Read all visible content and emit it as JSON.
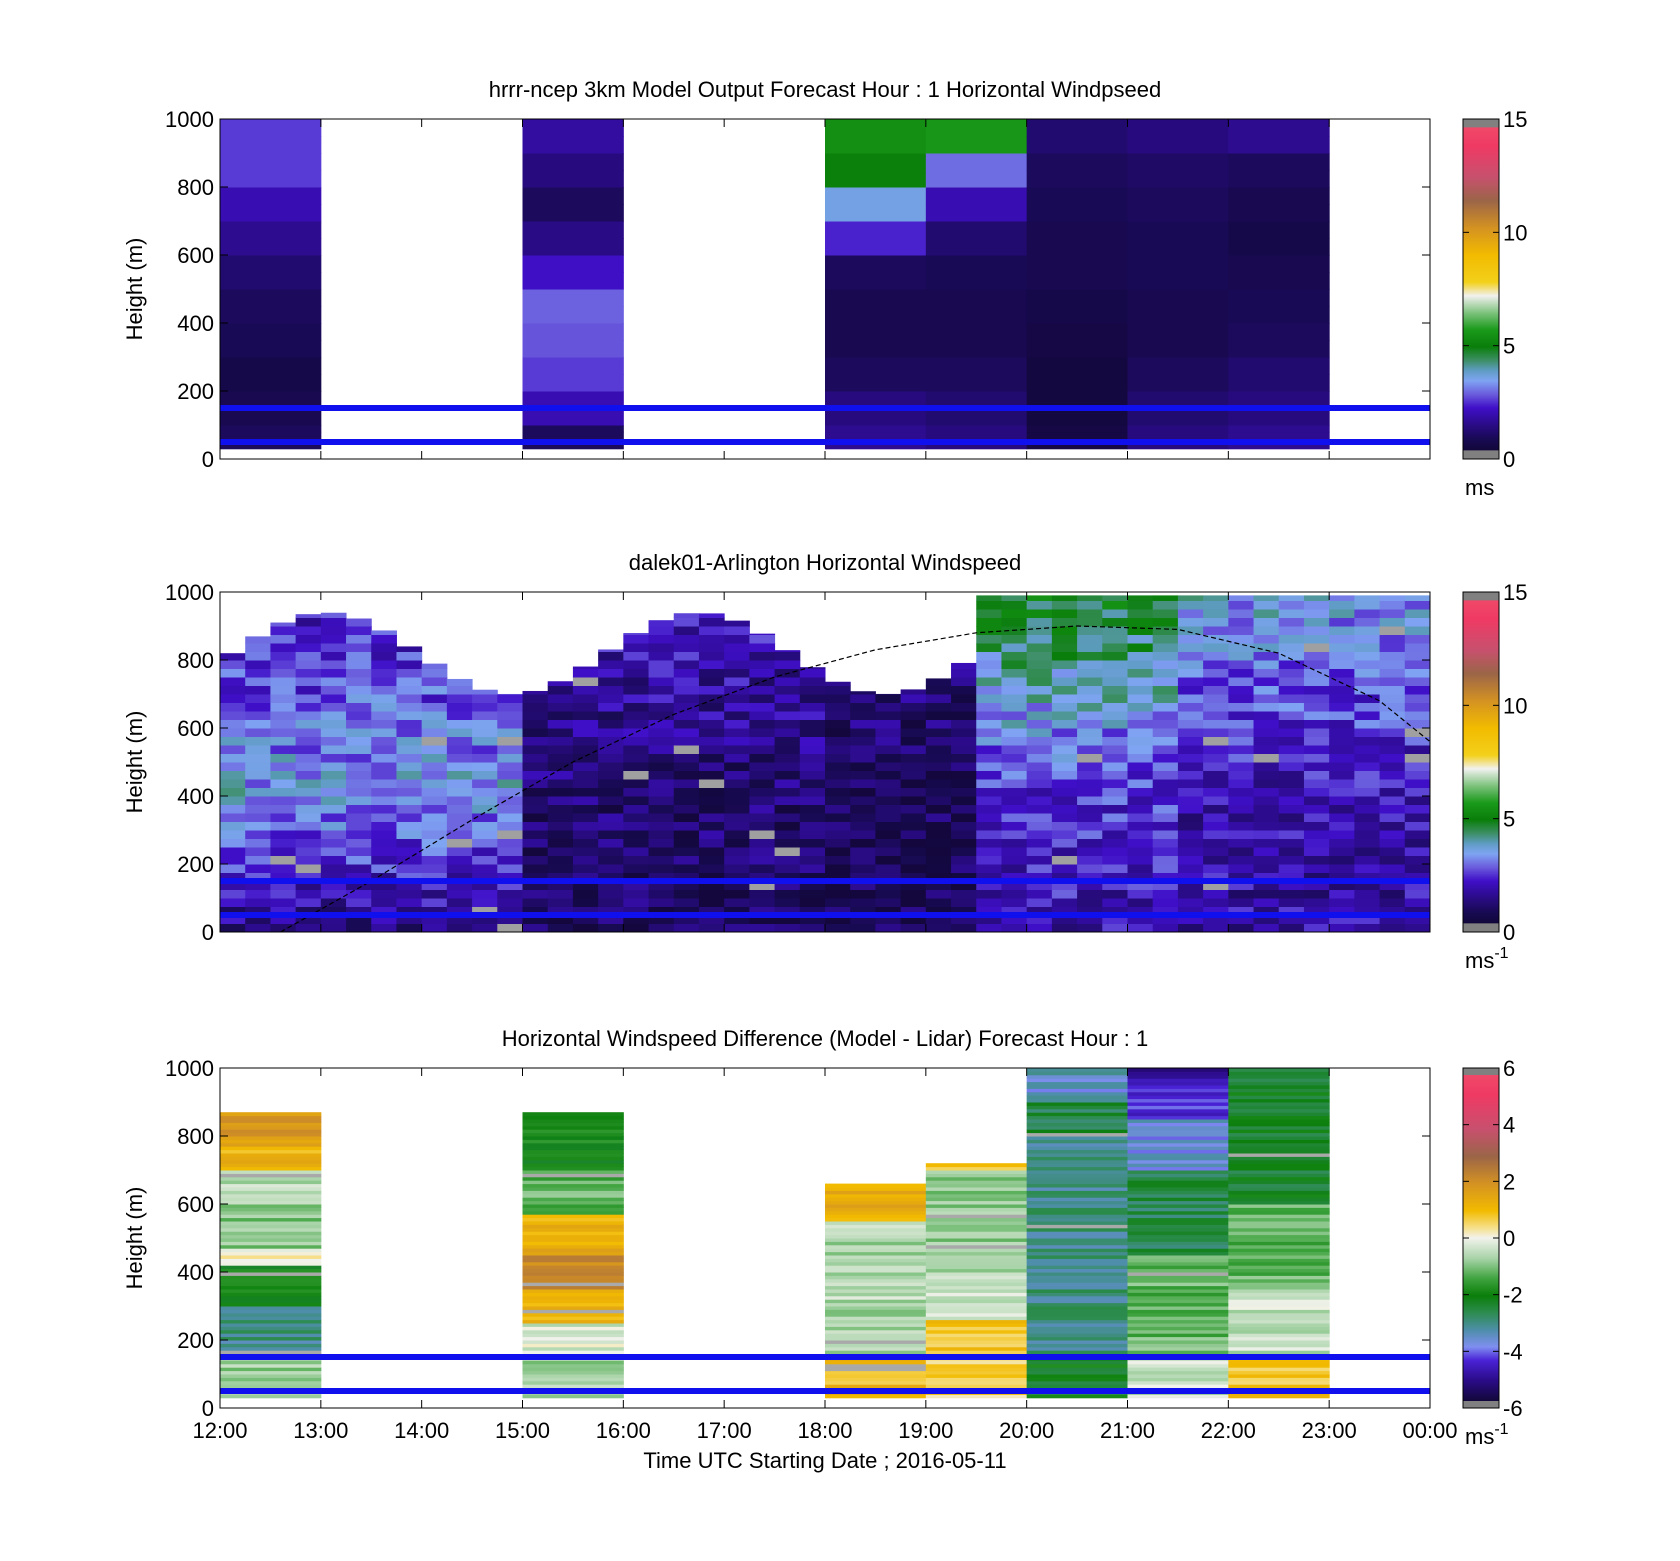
{
  "figure": {
    "xlabel": "Time UTC  Starting Date ; 2016-05-11"
  },
  "chart_data": [
    {
      "type": "heatmap",
      "id": "model",
      "title": "hrrr-ncep 3km Model Output   Forecast Hour : 1 Horizontal Windpseed",
      "ylabel": "Height (m)",
      "xlim": [
        12,
        24
      ],
      "ylim": [
        0,
        1000
      ],
      "x_ticks": [
        "12:00",
        "13:00",
        "14:00",
        "15:00",
        "16:00",
        "17:00",
        "18:00",
        "19:00",
        "20:00",
        "21:00",
        "22:00",
        "23:00",
        "00:00"
      ],
      "x_tick_labels_shown": false,
      "y_ticks": [
        "0",
        "200",
        "400",
        "600",
        "800",
        "1000"
      ],
      "colorbar": {
        "min": 0,
        "max": 15,
        "ticks": [
          "0",
          "5",
          "10",
          "15"
        ],
        "unit": "ms",
        "unit_superscript": ""
      },
      "reference_lines_m": [
        50,
        150
      ],
      "reference_line_color": "#1010ee",
      "columns": [
        {
          "hour": 12,
          "layers": [
            [
              30,
              100,
              1.0
            ],
            [
              100,
              200,
              0.8
            ],
            [
              200,
              300,
              0.7
            ],
            [
              300,
              400,
              0.9
            ],
            [
              400,
              500,
              1.0
            ],
            [
              500,
              600,
              1.2
            ],
            [
              600,
              700,
              1.6
            ],
            [
              700,
              800,
              2.0
            ],
            [
              800,
              1000,
              2.6
            ]
          ]
        },
        {
          "hour": 15,
          "layers": [
            [
              30,
              100,
              1.0
            ],
            [
              100,
              200,
              2.0
            ],
            [
              200,
              300,
              2.6
            ],
            [
              300,
              400,
              2.8
            ],
            [
              400,
              500,
              2.9
            ],
            [
              500,
              600,
              2.2
            ],
            [
              600,
              700,
              1.5
            ],
            [
              700,
              800,
              1.0
            ],
            [
              800,
              900,
              1.4
            ],
            [
              900,
              1000,
              1.8
            ]
          ]
        },
        {
          "hour": 18,
          "layers": [
            [
              30,
              100,
              1.6
            ],
            [
              100,
              200,
              1.4
            ],
            [
              200,
              300,
              1.0
            ],
            [
              300,
              400,
              0.8
            ],
            [
              400,
              500,
              0.8
            ],
            [
              500,
              600,
              1.0
            ],
            [
              600,
              700,
              2.4
            ],
            [
              700,
              800,
              3.6
            ],
            [
              800,
              900,
              5.0
            ],
            [
              900,
              1000,
              5.4
            ]
          ]
        },
        {
          "hour": 19,
          "layers": [
            [
              30,
              100,
              1.4
            ],
            [
              100,
              200,
              1.2
            ],
            [
              200,
              300,
              1.0
            ],
            [
              300,
              400,
              0.8
            ],
            [
              400,
              500,
              0.8
            ],
            [
              500,
              600,
              0.9
            ],
            [
              600,
              700,
              1.2
            ],
            [
              700,
              800,
              2.0
            ],
            [
              800,
              900,
              3.0
            ],
            [
              900,
              1000,
              5.6
            ]
          ]
        },
        {
          "hour": 20,
          "layers": [
            [
              30,
              100,
              0.6
            ],
            [
              100,
              200,
              0.5
            ],
            [
              200,
              300,
              0.5
            ],
            [
              300,
              400,
              0.6
            ],
            [
              400,
              500,
              0.7
            ],
            [
              500,
              600,
              0.8
            ],
            [
              600,
              700,
              0.8
            ],
            [
              700,
              800,
              0.9
            ],
            [
              800,
              900,
              1.0
            ],
            [
              900,
              1000,
              1.2
            ]
          ]
        },
        {
          "hour": 21,
          "layers": [
            [
              30,
              100,
              1.4
            ],
            [
              100,
              200,
              1.2
            ],
            [
              200,
              300,
              1.0
            ],
            [
              300,
              400,
              0.8
            ],
            [
              400,
              500,
              0.8
            ],
            [
              500,
              600,
              0.9
            ],
            [
              600,
              700,
              0.9
            ],
            [
              700,
              800,
              1.0
            ],
            [
              800,
              900,
              1.1
            ],
            [
              900,
              1000,
              1.4
            ]
          ]
        },
        {
          "hour": 22,
          "layers": [
            [
              30,
              100,
              1.6
            ],
            [
              100,
              200,
              1.4
            ],
            [
              200,
              300,
              1.2
            ],
            [
              300,
              400,
              1.0
            ],
            [
              400,
              500,
              0.9
            ],
            [
              500,
              600,
              0.8
            ],
            [
              600,
              700,
              0.7
            ],
            [
              700,
              800,
              0.8
            ],
            [
              800,
              900,
              1.0
            ],
            [
              900,
              1000,
              1.6
            ]
          ]
        }
      ]
    },
    {
      "type": "heatmap",
      "id": "lidar",
      "title": "dalek01-Arlington  Horizontal Windspeed",
      "ylabel": "Height (m)",
      "xlim": [
        12,
        24
      ],
      "ylim": [
        0,
        1000
      ],
      "x_ticks": [
        "12:00",
        "13:00",
        "14:00",
        "15:00",
        "16:00",
        "17:00",
        "18:00",
        "19:00",
        "20:00",
        "21:00",
        "22:00",
        "23:00",
        "00:00"
      ],
      "x_tick_labels_shown": false,
      "y_ticks": [
        "0",
        "200",
        "400",
        "600",
        "800",
        "1000"
      ],
      "colorbar": {
        "min": 0,
        "max": 15,
        "ticks": [
          "0",
          "5",
          "10",
          "15"
        ],
        "unit": "ms",
        "unit_superscript": "-1"
      },
      "reference_lines_m": [
        50,
        150
      ],
      "reference_line_color": "#1010ee",
      "data_range_hours": [
        12,
        23.9
      ],
      "column_step_hours": 0.25,
      "bin_step_m": 25,
      "boundary_layer_curve": [
        [
          12.6,
          0
        ],
        [
          13.5,
          150
        ],
        [
          14.5,
          330
        ],
        [
          15.5,
          500
        ],
        [
          16.5,
          640
        ],
        [
          17.5,
          750
        ],
        [
          18.5,
          830
        ],
        [
          19.5,
          880
        ],
        [
          20.5,
          900
        ],
        [
          21.5,
          890
        ],
        [
          22.5,
          820
        ],
        [
          23.5,
          680
        ],
        [
          24,
          560
        ]
      ],
      "colored_profile_summary": [
        {
          "hours": [
            12,
            15
          ],
          "low_m_speed": 1.5,
          "mid_m_speed": 3.5,
          "top_m_speed": 2.0
        },
        {
          "hours": [
            15,
            18
          ],
          "low_m_speed": 1.0,
          "mid_m_speed": 1.2,
          "top_m_speed": 2.4
        },
        {
          "hours": [
            18,
            19.4
          ],
          "low_m_speed": 0.8,
          "mid_m_speed": 0.9,
          "top_m_speed": 1.8
        },
        {
          "hours": [
            19.4,
            21.5
          ],
          "low_m_speed": 2.0,
          "mid_m_speed": 2.5,
          "top_m_speed": 5.0
        },
        {
          "hours": [
            21.5,
            24
          ],
          "low_m_speed": 1.8,
          "mid_m_speed": 2.0,
          "top_m_speed": 3.6
        }
      ]
    },
    {
      "type": "heatmap",
      "id": "difference",
      "title": "Horizontal Windspeed Difference (Model - Lidar) Forecast Hour : 1",
      "ylabel": "Height (m)",
      "xlim": [
        12,
        24
      ],
      "ylim": [
        0,
        1000
      ],
      "x_ticks": [
        "12:00",
        "13:00",
        "14:00",
        "15:00",
        "16:00",
        "17:00",
        "18:00",
        "19:00",
        "20:00",
        "21:00",
        "22:00",
        "23:00",
        "00:00"
      ],
      "x_tick_labels_shown": true,
      "y_ticks": [
        "0",
        "200",
        "400",
        "600",
        "800",
        "1000"
      ],
      "colorbar": {
        "min": -6,
        "max": 6,
        "ticks": [
          "-6",
          "-4",
          "-2",
          "0",
          "2",
          "4",
          "6"
        ],
        "unit": "ms",
        "unit_superscript": "-1"
      },
      "reference_lines_m": [
        50,
        150
      ],
      "reference_line_color": "#1010ee",
      "columns": [
        {
          "hour": 12,
          "top_m": 870,
          "layers": [
            [
              30,
              150,
              -0.8
            ],
            [
              150,
              300,
              -3.0
            ],
            [
              300,
              420,
              -2.0
            ],
            [
              420,
              470,
              0.1
            ],
            [
              470,
              600,
              -1.0
            ],
            [
              600,
              700,
              -0.5
            ],
            [
              700,
              800,
              1.2
            ],
            [
              800,
              870,
              1.8
            ]
          ]
        },
        {
          "hour": 15,
          "top_m": 870,
          "layers": [
            [
              30,
              150,
              -0.8
            ],
            [
              150,
              250,
              -0.3
            ],
            [
              250,
              350,
              1.0
            ],
            [
              350,
              450,
              2.2
            ],
            [
              450,
              570,
              1.2
            ],
            [
              570,
              700,
              -1.2
            ],
            [
              700,
              870,
              -2.0
            ]
          ]
        },
        {
          "hour": 18,
          "top_m": 660,
          "layers": [
            [
              30,
              150,
              1.0
            ],
            [
              150,
              550,
              -0.6
            ],
            [
              550,
              660,
              1.2
            ]
          ]
        },
        {
          "hour": 19,
          "top_m": 720,
          "layers": [
            [
              30,
              150,
              0.6
            ],
            [
              150,
              260,
              0.9
            ],
            [
              260,
              400,
              -0.3
            ],
            [
              400,
              700,
              -0.9
            ],
            [
              700,
              720,
              1.0
            ]
          ]
        },
        {
          "hour": 20,
          "top_m": 1000,
          "layers": [
            [
              30,
              150,
              -2.2
            ],
            [
              150,
              800,
              -3.0
            ],
            [
              800,
              900,
              -2.5
            ],
            [
              900,
              1000,
              -3.5
            ]
          ]
        },
        {
          "hour": 21,
          "top_m": 1000,
          "layers": [
            [
              30,
              150,
              -0.4
            ],
            [
              150,
              450,
              -1.2
            ],
            [
              450,
              700,
              -2.6
            ],
            [
              700,
              850,
              -3.6
            ],
            [
              850,
              950,
              -4.2
            ],
            [
              950,
              1000,
              -4.8
            ]
          ]
        },
        {
          "hour": 22,
          "top_m": 1000,
          "layers": [
            [
              30,
              150,
              0.8
            ],
            [
              150,
              350,
              -0.4
            ],
            [
              350,
              600,
              -1.2
            ],
            [
              600,
              1000,
              -2.3
            ]
          ]
        }
      ]
    }
  ]
}
